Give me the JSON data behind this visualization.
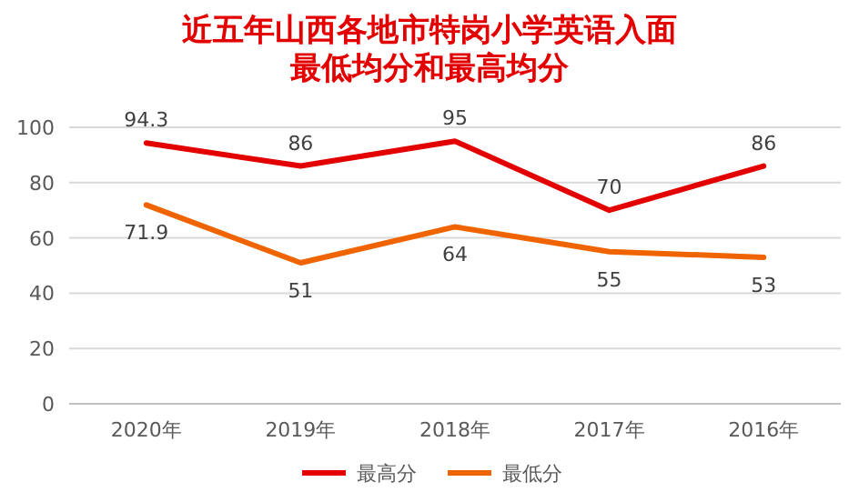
{
  "chart_data": {
    "type": "line",
    "title": "近五年山西各地市特岗小学英语入面最低均分和最高均分",
    "categories": [
      "2020年",
      "2019年",
      "2018年",
      "2017年",
      "2016年"
    ],
    "series": [
      {
        "name": "最高分",
        "color": "#e30000",
        "values": [
          94.3,
          86,
          95,
          70,
          86
        ]
      },
      {
        "name": "最低分",
        "color": "#f06400",
        "values": [
          71.9,
          51,
          64,
          55,
          53
        ]
      }
    ],
    "ylim": [
      0,
      100
    ],
    "yticks": [
      0,
      20,
      40,
      60,
      80,
      100
    ],
    "grid": "y",
    "legend": "bottom",
    "data_labels": true,
    "marker": "none",
    "line_style": "solid"
  }
}
